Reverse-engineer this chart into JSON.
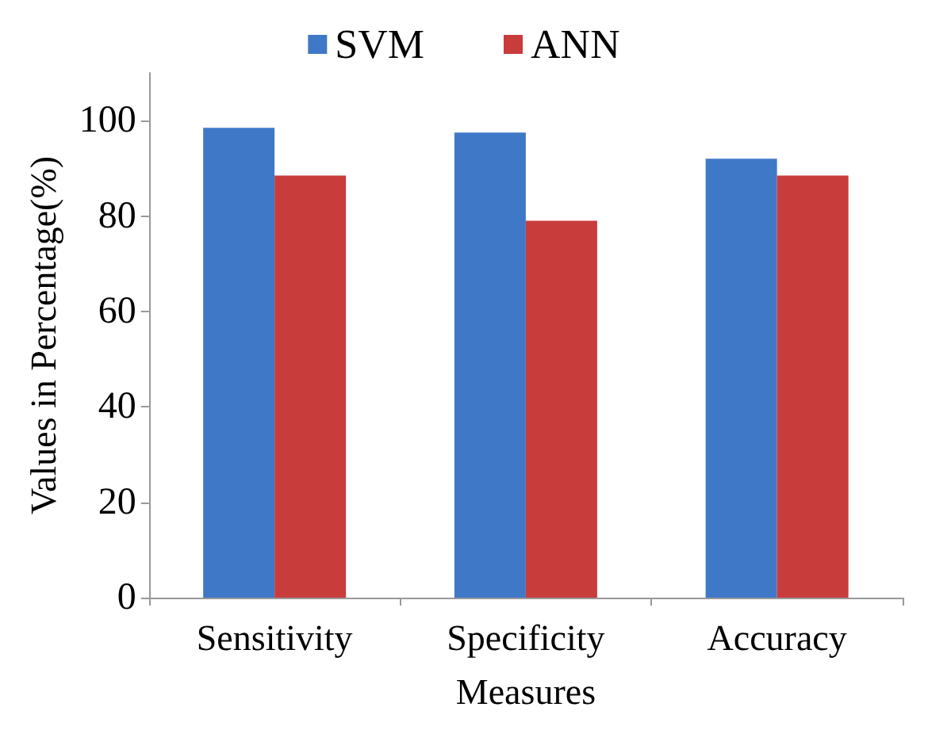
{
  "chart_data": {
    "type": "bar",
    "xlabel": "Measures",
    "ylabel": "Values in Percentage(%)",
    "categories": [
      "Sensitivity",
      "Specificity",
      "Accuracy"
    ],
    "series": [
      {
        "name": "SVM",
        "color": "#4078c8",
        "values": [
          98.5,
          97.5,
          92
        ]
      },
      {
        "name": "ANN",
        "color": "#c83c3c",
        "values": [
          88.5,
          79,
          88.5
        ]
      }
    ],
    "ylim": [
      0,
      110
    ],
    "yticks": [
      0,
      20,
      40,
      60,
      80,
      100
    ],
    "grid": false,
    "legend": "top"
  }
}
